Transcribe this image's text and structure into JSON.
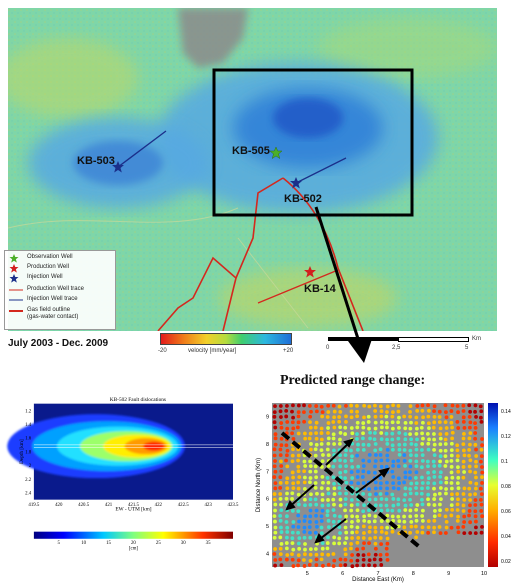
{
  "map": {
    "wells": {
      "kb503": "KB-503",
      "kb505": "KB-505",
      "kb502": "KB-502",
      "kb14": "KB-14"
    },
    "legend": {
      "observation": "Observation Well",
      "production": "Production Well",
      "injection": "Injection Well",
      "production_trace": "Production Well trace",
      "injection_trace": "Injection Well trace",
      "gas_field_1": "Gas field outline",
      "gas_field_2": "(gas-water contact)"
    },
    "date_range": "July 2003 - Dec. 2009",
    "velocity_scale": {
      "min": "-20",
      "label": "velocity [mm/year]",
      "max": "+20"
    },
    "distance_scale": {
      "labels": [
        "0",
        "2,5",
        "5"
      ],
      "unit": "Km"
    },
    "colors": {
      "observation": "#4caf2a",
      "production": "#d21f1f",
      "injection": "#1b2f8a",
      "trace_red": "#d4281e"
    }
  },
  "title_predicted": "Predicted range change:",
  "chart_data": [
    {
      "type": "contour",
      "title": "KB-502 Fault dislocations",
      "xlabel": "EW - UTM [km]",
      "ylabel": "Depth [km]",
      "x_ticks": [
        "419.5",
        "420",
        "420.5",
        "421",
        "421.5",
        "422",
        "422.5",
        "423",
        "423.5"
      ],
      "y_ticks": [
        "1.2",
        "1.4",
        "1.6",
        "1.8",
        "2",
        "2.2",
        "2.4"
      ],
      "xlim": [
        419.5,
        423.5
      ],
      "ylim": [
        1.1,
        2.5
      ],
      "colorbar_ticks": [
        "5",
        "10",
        "15",
        "20",
        "25",
        "30",
        "35"
      ],
      "colorbar_unit": "[cm]",
      "peak": {
        "x": 422,
        "y": 1.72,
        "value": 35
      }
    },
    {
      "type": "scatter",
      "xlabel": "Distance East (Km)",
      "ylabel": "Distance North (Km)",
      "x_ticks": [
        "5",
        "6",
        "7",
        "8",
        "9",
        "10"
      ],
      "y_ticks": [
        "4",
        "5",
        "6",
        "7",
        "8",
        "9"
      ],
      "xlim": [
        4,
        10
      ],
      "ylim": [
        3.5,
        9.5
      ],
      "colorbar_ticks": [
        "0.14",
        "0.12",
        "0.1",
        "0.08",
        "0.06",
        "0.04",
        "0.02"
      ]
    }
  ]
}
